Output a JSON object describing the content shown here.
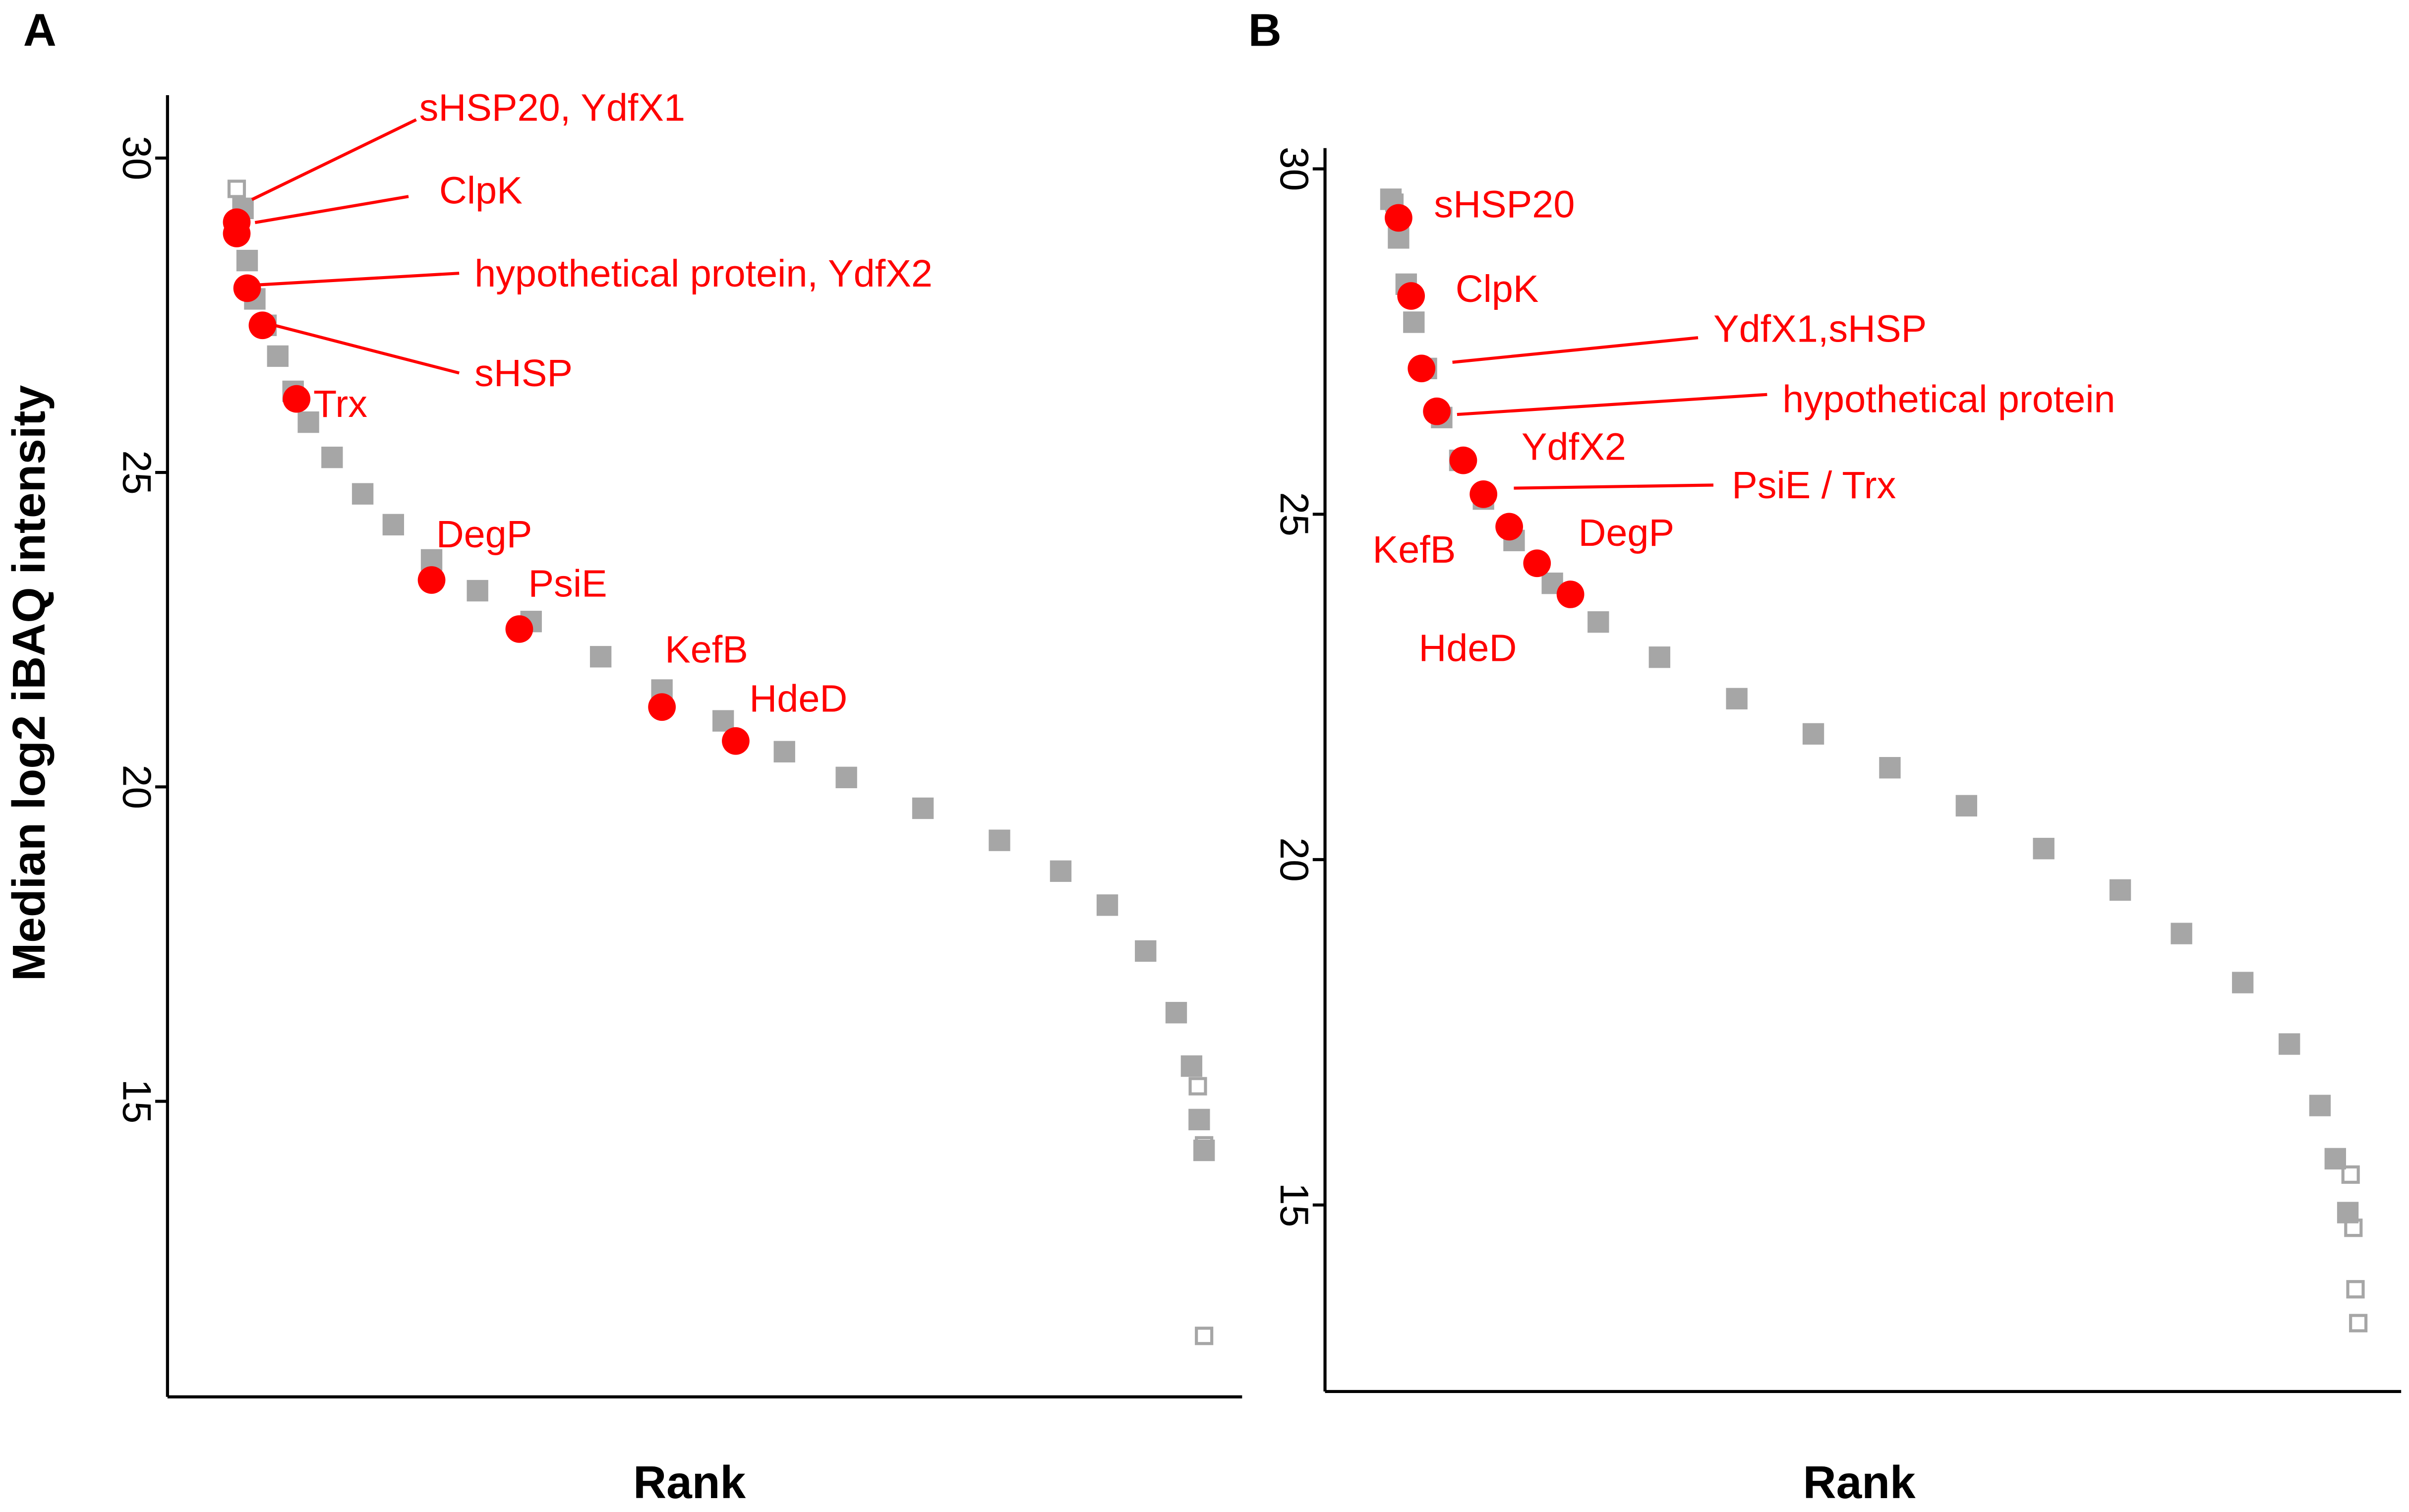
{
  "chart_data": [
    {
      "panel": "A",
      "type": "scatter",
      "x_label": "Rank",
      "y_label": "Median log2 iBAQ intensity",
      "xlim": [
        0,
        1500
      ],
      "ylim": [
        10.3,
        31
      ],
      "yticks": [
        15,
        20,
        25,
        30
      ],
      "series": [
        {
          "color": "#a6a6a6",
          "marker": "square",
          "x": [
            82,
            88,
            99,
            115,
            132,
            154,
            176,
            210,
            254,
            298,
            353,
            419,
            496,
            596,
            684,
            772,
            860,
            949,
            1059,
            1169,
            1257,
            1324,
            1379,
            1423,
            1445,
            1456,
            1463
          ],
          "values": [
            29.2,
            28.37,
            27.76,
            27.34,
            26.85,
            26.29,
            25.8,
            25.24,
            24.66,
            24.17,
            23.61,
            23.12,
            22.63,
            22.07,
            21.54,
            21.05,
            20.56,
            20.15,
            19.66,
            19.15,
            18.66,
            18.12,
            17.39,
            16.41,
            15.56,
            14.71,
            14.22
          ]
        },
        {
          "color": "#a6a6a6",
          "marker": "open-square",
          "x": [
            73,
            1454,
            1463,
            1463
          ],
          "values": [
            29.51,
            15.24,
            14.3,
            11.27
          ]
        },
        {
          "color": "#ff0000",
          "marker": "circle",
          "x": [
            73,
            73,
            88,
            110,
            159,
            353,
            479,
            684,
            790
          ],
          "values": [
            28.98,
            28.8,
            27.93,
            27.34,
            26.17,
            23.29,
            22.51,
            21.27,
            20.73
          ],
          "labels": [
            "sHSP20, YdfX1",
            "ClpK",
            "hypothetical protein, YdfX2",
            "sHSP",
            "Trx",
            "DegP",
            "PsiE",
            "KefB",
            "HdeD"
          ]
        }
      ]
    },
    {
      "panel": "B",
      "type": "scatter",
      "x_label": "Rank",
      "xlim": [
        0,
        1500
      ],
      "ylim": [
        12.3,
        30.3
      ],
      "yticks": [
        15,
        20,
        25,
        30
      ],
      "series": [
        {
          "color": "#a6a6a6",
          "marker": "square",
          "x": [
            66,
            77,
            88,
            99,
            117,
            139,
            165,
            199,
            243,
            298,
            364,
            452,
            563,
            673,
            783,
            893,
            1004,
            1114,
            1202,
            1290,
            1357,
            1401,
            1423,
            1441
          ],
          "values": [
            29.56,
            29.0,
            28.33,
            27.78,
            27.11,
            26.4,
            25.78,
            25.22,
            24.62,
            24.0,
            23.44,
            22.93,
            22.33,
            21.82,
            21.33,
            20.78,
            20.16,
            19.56,
            18.93,
            18.22,
            17.33,
            16.44,
            15.67,
            14.89
          ]
        },
        {
          "color": "#a6a6a6",
          "marker": "open-square",
          "x": [
            71,
            1445,
            1449,
            1452,
            1456
          ],
          "values": [
            29.51,
            15.44,
            14.67,
            13.78,
            13.29
          ]
        },
        {
          "color": "#ff0000",
          "marker": "circle",
          "x": [
            77,
            95,
            110,
            132,
            170,
            199,
            236,
            276,
            324
          ],
          "values": [
            29.29,
            28.16,
            27.11,
            26.49,
            25.78,
            25.29,
            24.82,
            24.29,
            23.84
          ],
          "labels": [
            "sHSP20",
            "ClpK",
            "YdfX1,sHSP",
            "hypothetical protein",
            "YdfX2",
            "PsiE / Trx",
            "KefB",
            "DegP",
            "HdeD"
          ]
        }
      ]
    }
  ]
}
